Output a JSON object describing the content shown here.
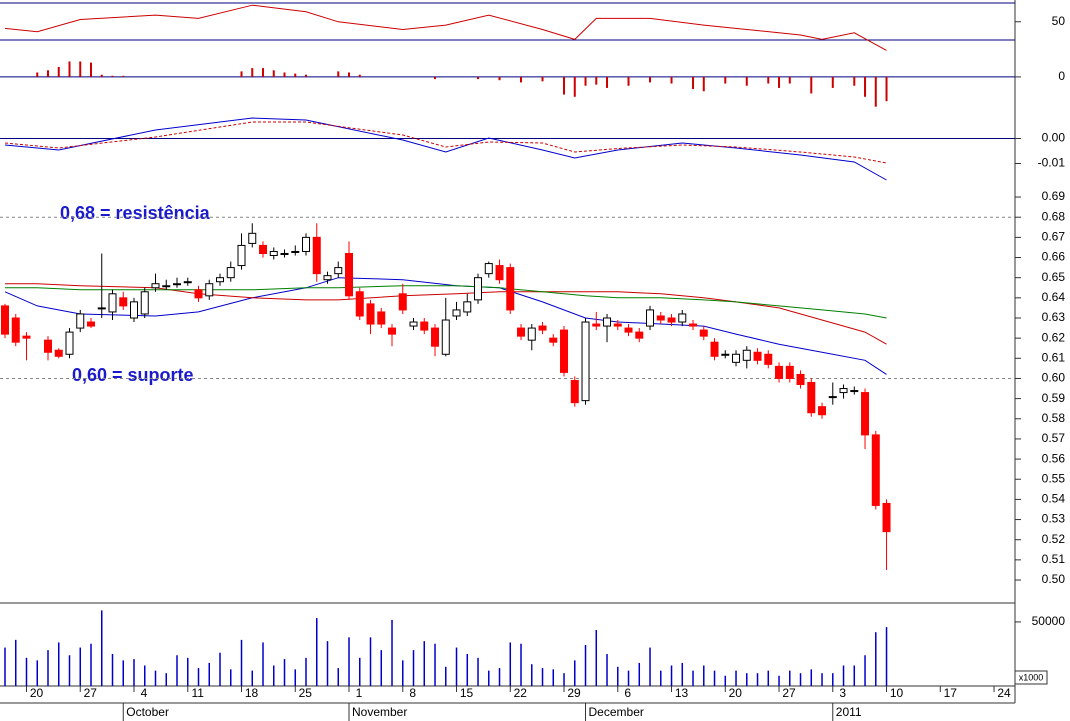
{
  "chart_data": [
    {
      "type": "oscillator",
      "series": [
        {
          "color": "#cc0000",
          "x": [
            0,
            3,
            7,
            14,
            18,
            23,
            28,
            31,
            37,
            41,
            45,
            50,
            53,
            55,
            60,
            65,
            69,
            74,
            76,
            79,
            82
          ],
          "values": [
            44,
            41,
            52,
            56,
            53,
            65,
            59,
            50,
            43,
            47,
            56,
            43,
            34,
            53,
            53,
            47,
            43,
            38,
            34,
            40,
            24
          ]
        }
      ],
      "histogram": {
        "color": "#cc0000",
        "x": [
          3,
          4,
          5,
          6,
          7,
          8,
          9,
          10,
          11,
          22,
          23,
          24,
          25,
          26,
          27,
          28,
          31,
          32,
          33,
          40,
          44,
          46,
          48,
          50,
          52,
          53,
          54,
          55,
          56,
          58,
          60,
          62,
          64,
          65,
          67,
          69,
          71,
          72,
          73,
          75,
          77,
          79,
          80,
          81,
          82
        ],
        "values": [
          4,
          6,
          9,
          14,
          14,
          13,
          2,
          1,
          1,
          5,
          8,
          8,
          6,
          4,
          3,
          2,
          5,
          4,
          2,
          -2,
          -2,
          -3,
          -5,
          -4,
          -16,
          -18,
          -8,
          -7,
          -10,
          -8,
          -5,
          -6,
          -11,
          -13,
          -6,
          -8,
          -6,
          -10,
          -6,
          -15,
          -10,
          -8,
          -18,
          -27,
          -22
        ]
      },
      "levels": [
        67,
        33.5,
        0
      ],
      "level_color": "#000080",
      "ylim": [
        -30,
        67
      ],
      "yticks": [
        0,
        50
      ]
    },
    {
      "type": "line",
      "series": [
        {
          "color": "#0000cc",
          "dash": false,
          "x": [
            0,
            5,
            14,
            23,
            28,
            37,
            41,
            45,
            50,
            53,
            57,
            63,
            68,
            74,
            79,
            82
          ],
          "values": [
            -0.0026,
            -0.0046,
            0.0034,
            0.0082,
            0.0074,
            -0.0006,
            -0.0054,
            0.0002,
            -0.0046,
            -0.0078,
            -0.0046,
            -0.0018,
            -0.0038,
            -0.0066,
            -0.0094,
            -0.0166
          ]
        },
        {
          "color": "#cc0000",
          "dash": true,
          "x": [
            0,
            5,
            14,
            23,
            28,
            37,
            41,
            45,
            50,
            53,
            57,
            63,
            68,
            74,
            79,
            82
          ],
          "values": [
            -0.0018,
            -0.0038,
            0.0006,
            0.0066,
            0.0066,
            0.0014,
            -0.0034,
            -0.0014,
            -0.0018,
            -0.0054,
            -0.004,
            -0.0026,
            -0.0034,
            -0.0054,
            -0.0074,
            -0.0098
          ]
        }
      ],
      "levels": [
        0
      ],
      "level_color": "#000080",
      "ylim": [
        -0.021,
        0.011
      ],
      "yticks": [
        {
          "value": 0,
          "label": "0.00"
        },
        {
          "value": -0.01,
          "label": "-0.01"
        }
      ]
    },
    {
      "type": "candlestick",
      "x": [
        0,
        1,
        2,
        4,
        5,
        6,
        7,
        8,
        9,
        10,
        11,
        12,
        13,
        14,
        15,
        16,
        17,
        18,
        19,
        20,
        21,
        22,
        23,
        24,
        25,
        26,
        27,
        28,
        29,
        30,
        31,
        32,
        33,
        34,
        35,
        36,
        37,
        38,
        39,
        40,
        41,
        42,
        43,
        44,
        45,
        46,
        47,
        48,
        49,
        50,
        51,
        52,
        53,
        54,
        55,
        56,
        57,
        58,
        59,
        60,
        61,
        62,
        63,
        64,
        65,
        66,
        67,
        68,
        69,
        70,
        71,
        72,
        73,
        74,
        75,
        76,
        77,
        78,
        79,
        80,
        81,
        82
      ],
      "open": [
        0.636,
        0.63,
        0.621,
        0.619,
        0.614,
        0.612,
        0.625,
        0.628,
        0.635,
        0.633,
        0.64,
        0.63,
        0.632,
        0.645,
        0.646,
        0.647,
        0.648,
        0.644,
        0.641,
        0.648,
        0.65,
        0.656,
        0.667,
        0.666,
        0.661,
        0.662,
        0.663,
        0.663,
        0.67,
        0.649,
        0.652,
        0.662,
        0.643,
        0.637,
        0.633,
        0.625,
        0.642,
        0.626,
        0.628,
        0.625,
        0.612,
        0.631,
        0.633,
        0.639,
        0.652,
        0.656,
        0.655,
        0.625,
        0.619,
        0.626,
        0.62,
        0.624,
        0.599,
        0.589,
        0.627,
        0.626,
        0.627,
        0.625,
        0.623,
        0.626,
        0.631,
        0.63,
        0.628,
        0.627,
        0.624,
        0.618,
        0.612,
        0.608,
        0.609,
        0.613,
        0.612,
        0.606,
        0.606,
        0.602,
        0.598,
        0.586,
        0.591,
        0.593,
        0.594,
        0.593,
        0.572,
        0.538
      ],
      "high": [
        0.637,
        0.632,
        0.623,
        0.621,
        0.615,
        0.625,
        0.634,
        0.63,
        0.662,
        0.644,
        0.643,
        0.64,
        0.645,
        0.652,
        0.649,
        0.65,
        0.65,
        0.646,
        0.649,
        0.652,
        0.658,
        0.672,
        0.677,
        0.668,
        0.665,
        0.664,
        0.666,
        0.672,
        0.677,
        0.653,
        0.658,
        0.668,
        0.645,
        0.639,
        0.635,
        0.627,
        0.647,
        0.63,
        0.63,
        0.627,
        0.64,
        0.638,
        0.642,
        0.652,
        0.658,
        0.659,
        0.657,
        0.627,
        0.627,
        0.628,
        0.622,
        0.626,
        0.601,
        0.63,
        0.633,
        0.632,
        0.629,
        0.627,
        0.625,
        0.636,
        0.633,
        0.632,
        0.634,
        0.629,
        0.626,
        0.62,
        0.614,
        0.614,
        0.616,
        0.615,
        0.614,
        0.608,
        0.608,
        0.604,
        0.6,
        0.588,
        0.598,
        0.597,
        0.596,
        0.595,
        0.574,
        0.54
      ],
      "low": [
        0.62,
        0.616,
        0.609,
        0.609,
        0.61,
        0.61,
        0.623,
        0.625,
        0.63,
        0.629,
        0.634,
        0.628,
        0.63,
        0.643,
        0.644,
        0.645,
        0.646,
        0.638,
        0.639,
        0.646,
        0.648,
        0.654,
        0.665,
        0.66,
        0.659,
        0.66,
        0.661,
        0.661,
        0.648,
        0.647,
        0.65,
        0.639,
        0.629,
        0.622,
        0.625,
        0.616,
        0.632,
        0.624,
        0.622,
        0.611,
        0.611,
        0.629,
        0.631,
        0.637,
        0.65,
        0.647,
        0.632,
        0.619,
        0.614,
        0.622,
        0.616,
        0.601,
        0.586,
        0.587,
        0.624,
        0.618,
        0.624,
        0.621,
        0.618,
        0.624,
        0.627,
        0.626,
        0.626,
        0.624,
        0.619,
        0.609,
        0.61,
        0.606,
        0.605,
        0.607,
        0.605,
        0.598,
        0.598,
        0.595,
        0.581,
        0.58,
        0.587,
        0.59,
        0.592,
        0.565,
        0.535,
        0.505
      ],
      "close": [
        0.622,
        0.618,
        0.62,
        0.613,
        0.611,
        0.623,
        0.632,
        0.626,
        0.635,
        0.642,
        0.636,
        0.638,
        0.643,
        0.647,
        0.646,
        0.647,
        0.648,
        0.64,
        0.647,
        0.65,
        0.655,
        0.666,
        0.672,
        0.662,
        0.663,
        0.662,
        0.663,
        0.67,
        0.652,
        0.651,
        0.655,
        0.641,
        0.631,
        0.627,
        0.627,
        0.622,
        0.634,
        0.628,
        0.624,
        0.616,
        0.629,
        0.634,
        0.638,
        0.65,
        0.657,
        0.649,
        0.634,
        0.621,
        0.625,
        0.624,
        0.618,
        0.603,
        0.588,
        0.628,
        0.626,
        0.63,
        0.626,
        0.623,
        0.62,
        0.634,
        0.629,
        0.628,
        0.632,
        0.626,
        0.621,
        0.611,
        0.612,
        0.612,
        0.614,
        0.609,
        0.607,
        0.6,
        0.6,
        0.597,
        0.583,
        0.582,
        0.591,
        0.595,
        0.594,
        0.572,
        0.537,
        0.524
      ],
      "up_color": "#ffffff",
      "down_color": "#ff0000",
      "series": [
        {
          "color": "#0000cc",
          "x": [
            0,
            3,
            7,
            14,
            18,
            23,
            28,
            31,
            37,
            42,
            46,
            50,
            54,
            57,
            61,
            65,
            68,
            72,
            76,
            80,
            82
          ],
          "values": [
            0.643,
            0.636,
            0.632,
            0.631,
            0.633,
            0.64,
            0.645,
            0.65,
            0.649,
            0.646,
            0.645,
            0.638,
            0.63,
            0.628,
            0.627,
            0.626,
            0.622,
            0.617,
            0.613,
            0.609,
            0.602
          ]
        },
        {
          "color": "#cc0000",
          "x": [
            0,
            3,
            7,
            14,
            18,
            23,
            28,
            31,
            37,
            42,
            46,
            50,
            54,
            57,
            61,
            65,
            68,
            72,
            76,
            80,
            82
          ],
          "values": [
            0.647,
            0.647,
            0.646,
            0.645,
            0.642,
            0.64,
            0.639,
            0.639,
            0.641,
            0.642,
            0.643,
            0.643,
            0.643,
            0.643,
            0.642,
            0.64,
            0.638,
            0.635,
            0.629,
            0.623,
            0.617
          ]
        },
        {
          "color": "#008000",
          "x": [
            0,
            3,
            7,
            14,
            18,
            23,
            28,
            31,
            37,
            42,
            46,
            50,
            54,
            57,
            61,
            65,
            68,
            72,
            76,
            80,
            82
          ],
          "values": [
            0.645,
            0.645,
            0.644,
            0.644,
            0.644,
            0.644,
            0.645,
            0.645,
            0.646,
            0.646,
            0.645,
            0.643,
            0.641,
            0.64,
            0.64,
            0.639,
            0.638,
            0.636,
            0.634,
            0.632,
            0.63
          ]
        }
      ],
      "levels": [
        0.68,
        0.6
      ],
      "level_color": "#888888",
      "annotations": [
        "0,68 = resistência",
        "0,60 = suporte"
      ],
      "ylim": [
        0.4886,
        0.6935
      ],
      "yticks": [
        {
          "value": 0.5,
          "label": "0.50"
        },
        {
          "value": 0.51,
          "label": "0.51"
        },
        {
          "value": 0.52,
          "label": "0.52"
        },
        {
          "value": 0.53,
          "label": "0.53"
        },
        {
          "value": 0.54,
          "label": "0.54"
        },
        {
          "value": 0.55,
          "label": "0.55"
        },
        {
          "value": 0.56,
          "label": "0.56"
        },
        {
          "value": 0.57,
          "label": "0.57"
        },
        {
          "value": 0.58,
          "label": "0.58"
        },
        {
          "value": 0.59,
          "label": "0.59"
        },
        {
          "value": 0.6,
          "label": "0.60"
        },
        {
          "value": 0.61,
          "label": "0.61"
        },
        {
          "value": 0.62,
          "label": "0.62"
        },
        {
          "value": 0.63,
          "label": "0.63"
        },
        {
          "value": 0.64,
          "label": "0.64"
        },
        {
          "value": 0.65,
          "label": "0.65"
        },
        {
          "value": 0.66,
          "label": "0.66"
        },
        {
          "value": 0.67,
          "label": "0.67"
        },
        {
          "value": 0.68,
          "label": "0.68"
        },
        {
          "value": 0.69,
          "label": "0.69"
        }
      ]
    },
    {
      "type": "bar",
      "color": "#0000cc",
      "values": [
        30000,
        36000,
        22000,
        20000,
        28000,
        34000,
        24000,
        30000,
        33000,
        59000,
        25000,
        20000,
        21000,
        16000,
        12000,
        10000,
        24000,
        22000,
        14000,
        18000,
        26000,
        13000,
        36000,
        12000,
        34000,
        16000,
        21000,
        13000,
        22000,
        53000,
        35000,
        14000,
        38000,
        22000,
        38000,
        28000,
        51600,
        20000,
        28000,
        35000,
        33000,
        15000,
        30000,
        25000,
        22000,
        12000,
        14000,
        34000,
        33000,
        17000,
        14000,
        13000,
        10000,
        20000,
        32000,
        43700,
        25000,
        15000,
        12000,
        18000,
        30000,
        12000,
        16000,
        18000,
        12000,
        16000,
        12000,
        8000,
        12000,
        10000,
        10000,
        12000,
        8000,
        12000,
        10000,
        13000,
        10000,
        10000,
        16000,
        16000,
        24000,
        42000,
        46000
      ],
      "unit_label": "x1000",
      "ylim": [
        0,
        64000
      ],
      "yticks": [
        50000
      ]
    }
  ],
  "x_axis": {
    "xlim": [
      -0.465,
      93.95
    ],
    "xticks": [
      {
        "value": 2,
        "label": "20"
      },
      {
        "value": 7,
        "label": "27"
      },
      {
        "value": 12,
        "label": "4"
      },
      {
        "value": 17,
        "label": "11"
      },
      {
        "value": 22,
        "label": "18"
      },
      {
        "value": 27,
        "label": "25"
      },
      {
        "value": 32,
        "label": "1"
      },
      {
        "value": 37,
        "label": "8"
      },
      {
        "value": 42,
        "label": "15"
      },
      {
        "value": 47,
        "label": "22"
      },
      {
        "value": 52,
        "label": "29"
      },
      {
        "value": 57,
        "label": "6"
      },
      {
        "value": 62,
        "label": "13"
      },
      {
        "value": 67,
        "label": "20"
      },
      {
        "value": 72,
        "label": "27"
      },
      {
        "value": 77,
        "label": "3"
      },
      {
        "value": 82,
        "label": "10"
      },
      {
        "value": 87,
        "label": "17"
      },
      {
        "value": 92,
        "label": "24"
      }
    ],
    "months": [
      {
        "value": 11,
        "label": "October"
      },
      {
        "value": 32,
        "label": "November"
      },
      {
        "value": 54,
        "label": "December"
      },
      {
        "value": 77,
        "label": "2011"
      }
    ]
  }
}
